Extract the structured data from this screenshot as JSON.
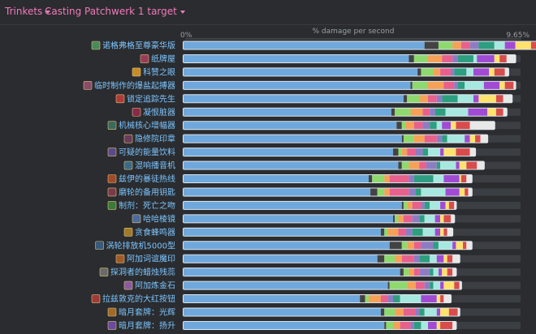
{
  "toolbar": {
    "trinkets_label": "Trinkets",
    "encounter_label": "Casting Patchwerk 1 target"
  },
  "chart_data": {
    "type": "bar",
    "stacked": true,
    "orientation": "horizontal",
    "xlabel": "% damage per second",
    "x_tick_labels": [
      "0%",
      "9.65%"
    ],
    "xlim": [
      0,
      9.65
    ],
    "icon_colors": [
      "#4a8a5a",
      "#9a3a5a",
      "#c88a2a",
      "#8a4a6a",
      "#b03a3a",
      "#8a2a4a",
      "#3a6a5a",
      "#6a3a5a",
      "#5a4a8a",
      "#3a6a8a",
      "#a04a2a",
      "#7a3a4a",
      "#3a7a3a",
      "#4a6aa0",
      "#a07a2a",
      "#3a5a7a",
      "#a05a2a",
      "#6a6a6a",
      "#8a5aa0",
      "#a03a3a",
      "#a06a2a",
      "#6a4aa0"
    ],
    "categories": [
      "诺格弗格至尊豪华版",
      "纸牌屋",
      "科赞之眼",
      "临时制作的爆盐起搏器",
      "锁定追踪先生",
      "凝恨脏器",
      "机械核心增幅器",
      "隐修院印章",
      "可疑的能量饮料",
      "混响播音机",
      "兹伊的暴徒热线",
      "磨轮的备用钥匙",
      "制剂：死亡之吻",
      "哈哈棱镜",
      "贪食蜂鸣器",
      "涡轮排放机5000型",
      "阿加词谊魔印",
      "探洞者的蜡烛残蕊",
      "阿加炼金石",
      "拉兹敦克的大红按钮",
      "暗月套牌：光辉",
      "暗月套牌：扬升"
    ],
    "segment_colors": [
      "#6fa8dc",
      "#434343",
      "#8ed96d",
      "#f5a157",
      "#e8608c",
      "#8e7cc3",
      "#2e9e81",
      "#a6e8e0",
      "#a14bd4",
      "#ffe26e",
      "#d94c4c",
      "#e8e8e8"
    ],
    "rows": [
      [
        6.9,
        0.4,
        0.4,
        0.25,
        0.25,
        0.25,
        0.45,
        0.3,
        0.3,
        0.45,
        0.3,
        0.4
      ],
      [
        6.45,
        0.15,
        0.4,
        0.4,
        0.3,
        0.15,
        0.45,
        0.1,
        0.5,
        0.15,
        0.2,
        0.25
      ],
      [
        6.7,
        0.1,
        0.35,
        0.2,
        0.3,
        0.1,
        0.35,
        0.2,
        0.45,
        0.15,
        0.3,
        0.1
      ],
      [
        6.5,
        0.05,
        0.45,
        0.45,
        0.3,
        0.1,
        0.2,
        0.55,
        0.45,
        0.15,
        0.25,
        0.05
      ],
      [
        6.3,
        0.1,
        0.35,
        0.25,
        0.25,
        0.15,
        0.45,
        0.45,
        0.15,
        0.5,
        0.2,
        0.25
      ],
      [
        5.95,
        0.1,
        0.45,
        0.35,
        0.2,
        0.15,
        0.3,
        0.65,
        0.55,
        0.25,
        0.2,
        0.1
      ],
      [
        6.1,
        0.15,
        0.1,
        0.25,
        0.25,
        0.2,
        0.2,
        0.15,
        0.25,
        0.15,
        0.4,
        0.7
      ],
      [
        6.25,
        0.05,
        0.3,
        0.3,
        0.35,
        0.15,
        0.15,
        0.5,
        0.15,
        0.15,
        0.15,
        0.2
      ],
      [
        6.0,
        0.15,
        0.1,
        0.15,
        0.25,
        0.2,
        0.15,
        0.35,
        0.1,
        0.35,
        0.4,
        0.15
      ],
      [
        6.15,
        0.1,
        0.2,
        0.3,
        0.2,
        0.3,
        0.1,
        0.45,
        0.1,
        0.2,
        0.3,
        0.2
      ],
      [
        5.3,
        0.1,
        0.35,
        0.15,
        0.55,
        0.15,
        0.55,
        0.3,
        0.45,
        0.05,
        0.15,
        0.15
      ],
      [
        5.35,
        0.2,
        0.2,
        0.15,
        0.55,
        0.2,
        0.15,
        0.7,
        0.4,
        0.15,
        0.1,
        0.1
      ],
      [
        6.25,
        0.05,
        0.1,
        0.15,
        0.25,
        0.1,
        0.15,
        0.3,
        0.15,
        0.1,
        0.15,
        0.05
      ],
      [
        6.0,
        0.05,
        0.1,
        0.15,
        0.25,
        0.2,
        0.15,
        0.3,
        0.15,
        0.1,
        0.2,
        0.1
      ],
      [
        5.65,
        0.1,
        0.1,
        0.3,
        0.2,
        0.2,
        0.3,
        0.35,
        0.15,
        0.1,
        0.1,
        0.15
      ],
      [
        5.9,
        0.35,
        0.15,
        0.2,
        0.2,
        0.35,
        0.15,
        0.4,
        0.1,
        0.2,
        0.1,
        0.15
      ],
      [
        5.55,
        0.2,
        0.3,
        0.2,
        0.35,
        0.15,
        0.3,
        0.2,
        0.2,
        0.1,
        0.15,
        0.2
      ],
      [
        6.2,
        0.1,
        0.15,
        0.15,
        0.15,
        0.3,
        0.1,
        0.15,
        0.1,
        0.15,
        0.15,
        0.1
      ],
      [
        5.85,
        0.05,
        0.5,
        0.25,
        0.25,
        0.15,
        0.1,
        0.2,
        0.1,
        0.3,
        0.15,
        0.05
      ],
      [
        5.05,
        0.15,
        0.1,
        0.35,
        0.2,
        0.15,
        0.2,
        0.6,
        0.45,
        0.1,
        0.1,
        0.2
      ],
      [
        5.65,
        0.1,
        0.3,
        0.25,
        0.35,
        0.1,
        0.15,
        0.35,
        0.1,
        0.25,
        0.25,
        0.05
      ],
      [
        5.75,
        0.05,
        0.2,
        0.2,
        0.3,
        0.1,
        0.2,
        0.2,
        0.25,
        0.1,
        0.35,
        0.1
      ]
    ]
  }
}
